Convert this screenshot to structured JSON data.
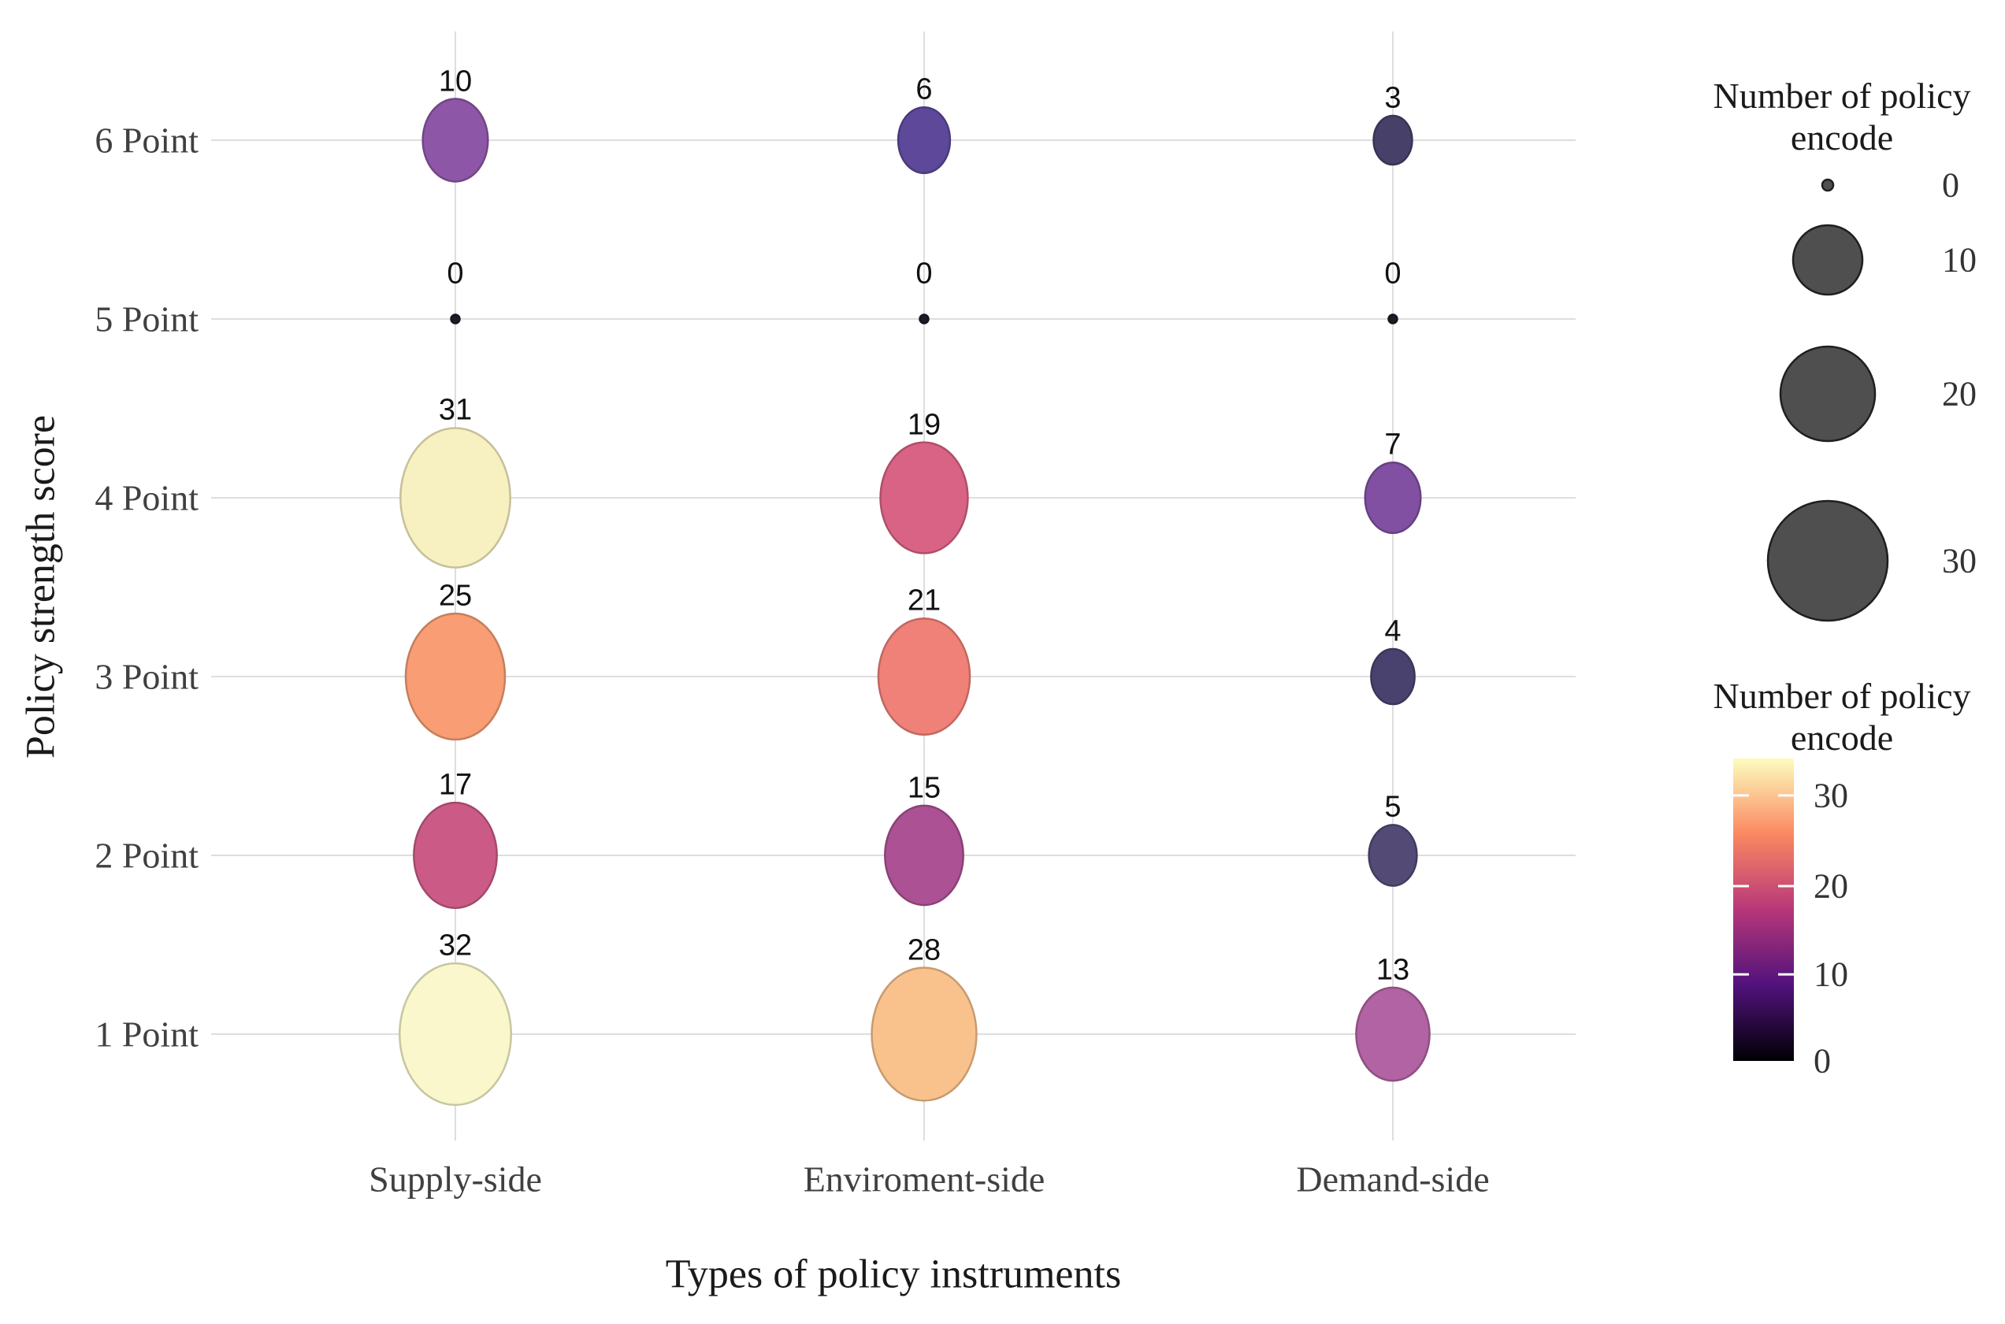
{
  "chart_data": {
    "type": "scatter",
    "subtype": "bubble-balloon-plot",
    "xlabel": "Types of policy instruments",
    "ylabel": "Policy strength score",
    "x_categories": [
      "Supply-side",
      "Enviroment-side",
      "Demand-side"
    ],
    "y_categories": [
      "6 Point",
      "5 Point",
      "4 Point",
      "3 Point",
      "2 Point",
      "1 Point"
    ],
    "grid": true,
    "series": [
      {
        "name": "Supply-side",
        "values": [
          10,
          0,
          31,
          25,
          17,
          32
        ],
        "colors": [
          "#8e56a6",
          "#1d1b26",
          "#f7f0c0",
          "#f89d74",
          "#cb5b86",
          "#f9f7cb"
        ]
      },
      {
        "name": "Enviroment-side",
        "values": [
          6,
          0,
          19,
          21,
          15,
          28
        ],
        "colors": [
          "#5d4899",
          "#1d1b26",
          "#d96385",
          "#f08178",
          "#ac5194",
          "#f9c28c"
        ]
      },
      {
        "name": "Demand-side",
        "values": [
          3,
          0,
          7,
          4,
          5,
          13
        ],
        "colors": [
          "#474169",
          "#1d1b26",
          "#8150a3",
          "#4a426e",
          "#544a76",
          "#b263a3"
        ]
      }
    ],
    "size_legend": {
      "title": "Number of policy encode",
      "entries": [
        "0",
        "10",
        "20",
        "30"
      ],
      "key_fill": "#4f4f4f",
      "key_stroke": "#1f1f1f"
    },
    "color_legend": {
      "title": "Number of policy encode",
      "ticks": [
        "30",
        "20",
        "10",
        "0"
      ],
      "gradient_bottom_to_top": [
        "#000004",
        "#51127c",
        "#b73779",
        "#fb8861",
        "#fcfdbf"
      ],
      "domain": [
        0,
        32
      ]
    }
  }
}
